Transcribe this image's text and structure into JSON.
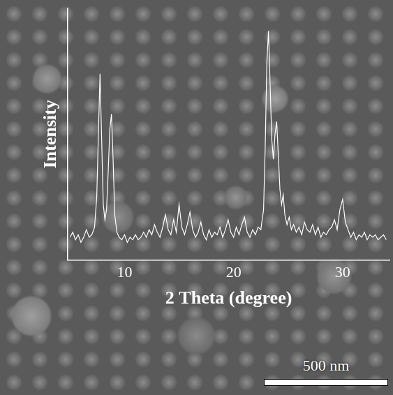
{
  "chart_data": {
    "type": "line",
    "x_label": "2 Theta (degree)",
    "y_label": "Intensity",
    "color": "#ffffff",
    "x": [
      5.0,
      5.25,
      5.5,
      5.75,
      6.0,
      6.25,
      6.5,
      6.75,
      7.0,
      7.25,
      7.45,
      7.6,
      7.75,
      7.9,
      8.05,
      8.2,
      8.35,
      8.5,
      8.65,
      8.8,
      8.95,
      9.1,
      9.3,
      9.5,
      9.75,
      10.0,
      10.25,
      10.5,
      10.75,
      11.0,
      11.25,
      11.5,
      11.75,
      12.0,
      12.25,
      12.5,
      12.75,
      13.0,
      13.25,
      13.5,
      13.75,
      14.0,
      14.25,
      14.5,
      14.75,
      15.0,
      15.25,
      15.5,
      15.75,
      16.0,
      16.25,
      16.5,
      16.75,
      17.0,
      17.25,
      17.5,
      17.75,
      18.0,
      18.25,
      18.5,
      18.75,
      19.0,
      19.25,
      19.5,
      19.75,
      20.0,
      20.25,
      20.5,
      20.75,
      21.0,
      21.25,
      21.5,
      21.75,
      22.0,
      22.25,
      22.5,
      22.75,
      22.9,
      23.05,
      23.2,
      23.35,
      23.5,
      23.65,
      23.8,
      23.95,
      24.1,
      24.25,
      24.4,
      24.55,
      24.7,
      24.9,
      25.1,
      25.3,
      25.5,
      25.75,
      26.0,
      26.25,
      26.5,
      26.75,
      27.0,
      27.25,
      27.5,
      27.75,
      28.0,
      28.25,
      28.5,
      28.75,
      29.0,
      29.25,
      29.5,
      29.75,
      30.0,
      30.25,
      30.5,
      30.75,
      31.0,
      31.25,
      31.5,
      31.75,
      32.0,
      32.25,
      32.5,
      32.75,
      33.0,
      33.25,
      33.5,
      33.75,
      34.0
    ],
    "values": [
      9,
      11,
      8,
      10,
      7,
      9,
      12,
      9,
      10,
      13,
      25,
      50,
      74,
      48,
      22,
      16,
      20,
      35,
      52,
      58,
      40,
      18,
      11,
      9,
      8,
      10,
      7,
      9,
      8,
      10,
      8,
      9,
      11,
      9,
      12,
      10,
      14,
      11,
      9,
      13,
      18,
      12,
      10,
      16,
      11,
      22,
      13,
      10,
      14,
      19,
      12,
      9,
      11,
      15,
      10,
      8,
      12,
      9,
      11,
      10,
      13,
      9,
      12,
      16,
      11,
      9,
      13,
      10,
      14,
      17,
      11,
      9,
      12,
      10,
      13,
      12,
      20,
      45,
      78,
      91,
      70,
      48,
      40,
      50,
      55,
      42,
      28,
      22,
      26,
      18,
      14,
      17,
      12,
      14,
      11,
      13,
      10,
      15,
      12,
      11,
      14,
      10,
      13,
      9,
      11,
      10,
      12,
      13,
      16,
      12,
      20,
      24,
      15,
      12,
      9,
      11,
      8,
      10,
      9,
      11,
      8,
      10,
      9,
      10,
      8,
      9,
      10,
      8
    ],
    "xlim": [
      4.8,
      34.3
    ],
    "xticks": [
      10,
      20,
      30
    ],
    "ylim": [
      0,
      100
    ],
    "grid": false,
    "tick_labels": "x",
    "annotations": [
      "500 nm"
    ]
  }
}
